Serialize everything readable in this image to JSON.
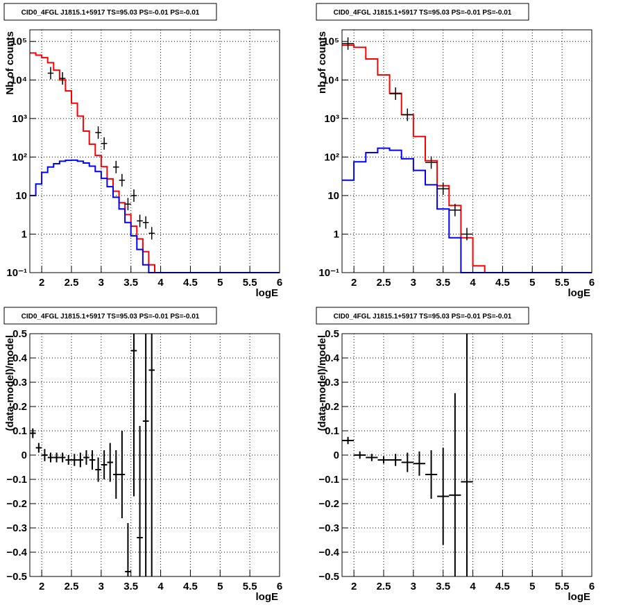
{
  "chart_data": [
    {
      "type": "line",
      "title": "CID0_4FGL J1815.1+5917 TS=95.03 PS=-0.01 PS=-0.01",
      "xlabel": "logE",
      "ylabel": "Nb of counts",
      "xlim": [
        1.8,
        6.0
      ],
      "ylim": [
        0.1,
        200000
      ],
      "yscale": "log",
      "grid": true,
      "x_ticks": [
        "2",
        "2.5",
        "3",
        "3.5",
        "4",
        "4.5",
        "5",
        "5.5",
        "6"
      ],
      "y_ticks": [
        "10⁻¹",
        "1",
        "10",
        "10²",
        "10³",
        "10⁴",
        "10⁵"
      ],
      "bin_edges": [
        1.8,
        1.9,
        2.0,
        2.1,
        2.2,
        2.3,
        2.4,
        2.5,
        2.6,
        2.7,
        2.8,
        2.9,
        3.0,
        3.1,
        3.2,
        3.3,
        3.4,
        3.5,
        3.6,
        3.7,
        3.8,
        3.9,
        4.0,
        4.1,
        4.2,
        4.3,
        4.4,
        4.5,
        4.6,
        4.7,
        4.8,
        4.9,
        5.0,
        5.1,
        5.2,
        5.3,
        5.4,
        5.5,
        5.6,
        5.7,
        5.8,
        5.9,
        6.0
      ],
      "series": [
        {
          "color": "#ff0000",
          "values": [
            50000,
            44000,
            38000,
            28000,
            18000,
            10000,
            5200,
            2500,
            1150,
            470,
            215,
            110,
            56,
            27,
            13,
            6.5,
            3.2,
            1.6,
            0.75,
            0.35,
            0.16,
            0.1,
            0.1,
            0.1,
            0.1,
            0.1,
            0.1,
            0.1,
            0.1,
            0.1,
            0.1,
            0.1,
            0.1,
            0.1,
            0.1,
            0.1,
            0.1,
            0.1,
            0.1,
            0.1,
            0.1,
            0.1
          ]
        },
        {
          "color": "#0000ff",
          "values": [
            10,
            20,
            40,
            55,
            67,
            78,
            82,
            83,
            78,
            70,
            58,
            42,
            28,
            17,
            9,
            4.5,
            2.0,
            0.9,
            0.4,
            0.16,
            0.1,
            0.1,
            0.1,
            0.1,
            0.1,
            0.1,
            0.1,
            0.1,
            0.1,
            0.1,
            0.1,
            0.1,
            0.1,
            0.1,
            0.1,
            0.1,
            0.1,
            0.1,
            0.1,
            0.1,
            0.1,
            0.1
          ]
        },
        {
          "color": "#000000",
          "points": [
            {
              "x": 2.15,
              "y": 15000
            },
            {
              "x": 2.35,
              "y": 11000
            },
            {
              "x": 2.95,
              "y": 430
            },
            {
              "x": 3.05,
              "y": 225
            },
            {
              "x": 3.25,
              "y": 55
            },
            {
              "x": 3.35,
              "y": 25
            },
            {
              "x": 3.45,
              "y": 6
            },
            {
              "x": 3.55,
              "y": 10
            },
            {
              "x": 3.65,
              "y": 2.2
            },
            {
              "x": 3.75,
              "y": 2.0
            },
            {
              "x": 3.85,
              "y": 1.05
            }
          ]
        }
      ]
    },
    {
      "type": "line",
      "title": "CID0_4FGL J1815.1+5917 TS=95.03 PS=-0.01 PS=-0.01",
      "xlabel": "logE",
      "ylabel": "nb of counts",
      "xlim": [
        1.8,
        6.0
      ],
      "ylim": [
        0.1,
        200000
      ],
      "yscale": "log",
      "grid": true,
      "x_ticks": [
        "2",
        "2.5",
        "3",
        "3.5",
        "4",
        "4.5",
        "5",
        "5.5",
        "6"
      ],
      "y_ticks": [
        "10⁻¹",
        "1",
        "10",
        "10²",
        "10³",
        "10⁴",
        "10⁵"
      ],
      "bin_edges": [
        1.8,
        2.0,
        2.2,
        2.4,
        2.6,
        2.8,
        3.0,
        3.2,
        3.4,
        3.6,
        3.8,
        4.0,
        4.2,
        4.4,
        4.6,
        4.8,
        5.0,
        5.2,
        5.4,
        5.6,
        5.8,
        6.0
      ],
      "series": [
        {
          "color": "#ff0000",
          "values": [
            80000,
            70000,
            35000,
            13500,
            4500,
            1250,
            340,
            80,
            18,
            5.5,
            0.8,
            0.15,
            0.1,
            0.1,
            0.1,
            0.1,
            0.1,
            0.1,
            0.1,
            0.1,
            0.1
          ]
        },
        {
          "color": "#0000ff",
          "values": [
            25,
            75,
            130,
            170,
            150,
            90,
            45,
            19,
            4.5,
            0.8,
            0.1,
            0.1,
            0.1,
            0.1,
            0.1,
            0.1,
            0.1,
            0.1,
            0.1,
            0.1,
            0.1
          ]
        },
        {
          "color": "#000000",
          "points": [
            {
              "x": 1.9,
              "y": 88000
            },
            {
              "x": 2.7,
              "y": 4400
            },
            {
              "x": 2.9,
              "y": 1250
            },
            {
              "x": 3.3,
              "y": 72
            },
            {
              "x": 3.5,
              "y": 15
            },
            {
              "x": 3.7,
              "y": 4.2
            },
            {
              "x": 3.9,
              "y": 1.0
            }
          ]
        }
      ]
    },
    {
      "type": "scatter",
      "title": "CID0_4FGL J1815.1+5917 TS=95.03 PS=-0.01 PS=-0.01",
      "xlabel": "logE",
      "ylabel": "(data-model)/model",
      "xlim": [
        1.8,
        6.0
      ],
      "ylim": [
        -0.5,
        0.5
      ],
      "grid": true,
      "x_ticks": [
        "2",
        "2.5",
        "3",
        "3.5",
        "4",
        "4.5",
        "5",
        "5.5",
        "6"
      ],
      "y_ticks": [
        "−0.5",
        "−0.4",
        "−0.3",
        "−0.2",
        "−0.1",
        "0",
        "0.1",
        "0.2",
        "0.3",
        "0.4",
        "0.5"
      ],
      "points": [
        {
          "x": 1.85,
          "y": 0.09,
          "xerr": 0.05,
          "yerr": 0.02
        },
        {
          "x": 1.95,
          "y": 0.03,
          "xerr": 0.05,
          "yerr": 0.02
        },
        {
          "x": 2.05,
          "y": 0.0,
          "xerr": 0.05,
          "yerr": 0.025
        },
        {
          "x": 2.15,
          "y": -0.01,
          "xerr": 0.05,
          "yerr": 0.02
        },
        {
          "x": 2.25,
          "y": -0.01,
          "xerr": 0.05,
          "yerr": 0.02
        },
        {
          "x": 2.35,
          "y": -0.01,
          "xerr": 0.05,
          "yerr": 0.02
        },
        {
          "x": 2.45,
          "y": -0.02,
          "xerr": 0.05,
          "yerr": 0.02
        },
        {
          "x": 2.55,
          "y": -0.02,
          "xerr": 0.05,
          "yerr": 0.025
        },
        {
          "x": 2.65,
          "y": -0.02,
          "xerr": 0.05,
          "yerr": 0.03
        },
        {
          "x": 2.75,
          "y": -0.01,
          "xerr": 0.05,
          "yerr": 0.03
        },
        {
          "x": 2.85,
          "y": -0.02,
          "xerr": 0.05,
          "yerr": 0.04
        },
        {
          "x": 2.95,
          "y": -0.06,
          "xerr": 0.05,
          "yerr": 0.05
        },
        {
          "x": 3.05,
          "y": -0.04,
          "xerr": 0.05,
          "yerr": 0.06
        },
        {
          "x": 3.15,
          "y": -0.03,
          "xerr": 0.05,
          "yerr": 0.08
        },
        {
          "x": 3.25,
          "y": -0.08,
          "xerr": 0.05,
          "yerr": 0.1
        },
        {
          "x": 3.35,
          "y": -0.08,
          "xerr": 0.05,
          "yerr": 0.18
        },
        {
          "x": 3.45,
          "y": -0.48,
          "xerr": 0.05,
          "yerr": 0.2
        },
        {
          "x": 3.55,
          "y": 0.43,
          "xerr": 0.05,
          "yerr": 0.6
        },
        {
          "x": 3.65,
          "y": -0.34,
          "xerr": 0.05,
          "yerr": 0.46
        },
        {
          "x": 3.75,
          "y": 0.14,
          "xerr": 0.05,
          "yerr": 0.8
        },
        {
          "x": 3.85,
          "y": 0.35,
          "xerr": 0.05,
          "yerr": 1.0
        }
      ]
    },
    {
      "type": "scatter",
      "title": "CID0_4FGL J1815.1+5917 TS=95.03 PS=-0.01 PS=-0.01",
      "xlabel": "logE",
      "ylabel": "(data-model)/model",
      "xlim": [
        1.8,
        6.0
      ],
      "ylim": [
        -0.5,
        0.5
      ],
      "grid": true,
      "x_ticks": [
        "2",
        "2.5",
        "3",
        "3.5",
        "4",
        "4.5",
        "5",
        "5.5",
        "6"
      ],
      "y_ticks": [
        "−0.5",
        "−0.4",
        "−0.3",
        "−0.2",
        "−0.1",
        "0",
        "0.1",
        "0.2",
        "0.3",
        "0.4",
        "0.5"
      ],
      "points": [
        {
          "x": 1.9,
          "y": 0.06,
          "xerr": 0.1,
          "yerr": 0.015
        },
        {
          "x": 2.1,
          "y": 0.0,
          "xerr": 0.1,
          "yerr": 0.015
        },
        {
          "x": 2.3,
          "y": -0.01,
          "xerr": 0.1,
          "yerr": 0.015
        },
        {
          "x": 2.5,
          "y": -0.02,
          "xerr": 0.1,
          "yerr": 0.015
        },
        {
          "x": 2.7,
          "y": -0.02,
          "xerr": 0.1,
          "yerr": 0.025
        },
        {
          "x": 2.9,
          "y": -0.03,
          "xerr": 0.1,
          "yerr": 0.04
        },
        {
          "x": 3.1,
          "y": -0.035,
          "xerr": 0.1,
          "yerr": 0.05
        },
        {
          "x": 3.3,
          "y": -0.08,
          "xerr": 0.1,
          "yerr": 0.1
        },
        {
          "x": 3.5,
          "y": -0.17,
          "xerr": 0.1,
          "yerr": 0.2
        },
        {
          "x": 3.7,
          "y": -0.165,
          "xerr": 0.1,
          "yerr": 0.42
        },
        {
          "x": 3.9,
          "y": -0.11,
          "xerr": 0.1,
          "yerr": 0.9
        }
      ]
    }
  ]
}
